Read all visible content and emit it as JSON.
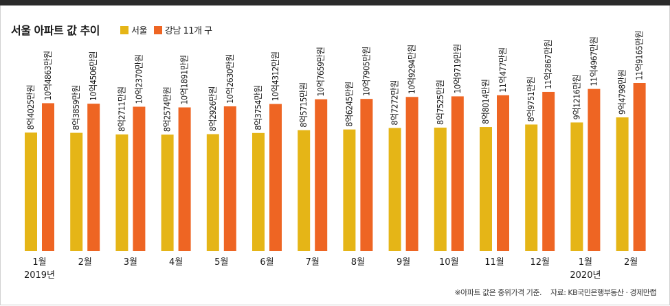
{
  "title": "서울 아파트 값 추이",
  "colors": {
    "seoul": "#e5b517",
    "gangnam": "#ee6523"
  },
  "chart_data": {
    "type": "bar",
    "title": "서울 아파트 값 추이",
    "unit": "만원",
    "ylim": [
      0,
      130000
    ],
    "categories": [
      "1월",
      "2월",
      "3월",
      "4월",
      "5월",
      "6월",
      "7월",
      "8월",
      "9월",
      "10월",
      "11월",
      "12월",
      "1월",
      "2월"
    ],
    "year_labels": [
      {
        "index": 0,
        "label": "2019년"
      },
      {
        "index": 12,
        "label": "2020년"
      }
    ],
    "series": [
      {
        "name": "서울",
        "values": [
          84025,
          83859,
          82711,
          82574,
          82926,
          83754,
          85715,
          86245,
          87272,
          87525,
          88014,
          89751,
          91216,
          94798
        ],
        "labels": [
          "8억4025만원",
          "8억3859만원",
          "8억2711만원",
          "8억2574만원",
          "8억2926만원",
          "8억3754만원",
          "8억5715만원",
          "8억6245만원",
          "8억7272만원",
          "8억7525만원",
          "8억8014만원",
          "8억9751만원",
          "9억1216만원",
          "9억4798만원"
        ]
      },
      {
        "name": "강남 11개 구",
        "values": [
          104863,
          104506,
          102370,
          101891,
          102630,
          104312,
          107659,
          107905,
          109294,
          109719,
          110477,
          112867,
          114967,
          119165
        ],
        "labels": [
          "10억4863만원",
          "10억4506만원",
          "10억2370만원",
          "10억1891만원",
          "10억2630만원",
          "10억4312만원",
          "10억7659만원",
          "10억7905만원",
          "10억9294만원",
          "10억9719만원",
          "11억477만원",
          "11억2867만원",
          "11억4967만원",
          "11억9165만원"
        ]
      }
    ]
  },
  "footnote": {
    "note": "※아파트 값은 중위가격 기준.",
    "source": "자료: KB국민은행부동산 · 경제만랩"
  }
}
